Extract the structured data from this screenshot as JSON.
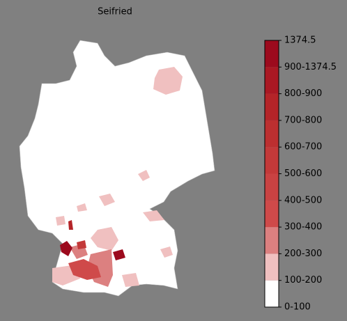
{
  "title": "Seifried",
  "colorbar": {
    "labels": [
      "0-100",
      "100-200",
      "200-300",
      "300-400",
      "400-500",
      "500-600",
      "600-700",
      "700-800",
      "800-900",
      "900-1374.5",
      "1374.5"
    ],
    "colors": [
      "#ffffff",
      "#f0c0c0",
      "#dc8080",
      "#cf4a4a",
      "#c94242",
      "#c33939",
      "#bc2f30",
      "#b42428",
      "#aa1823",
      "#9c0a1d"
    ]
  }
}
